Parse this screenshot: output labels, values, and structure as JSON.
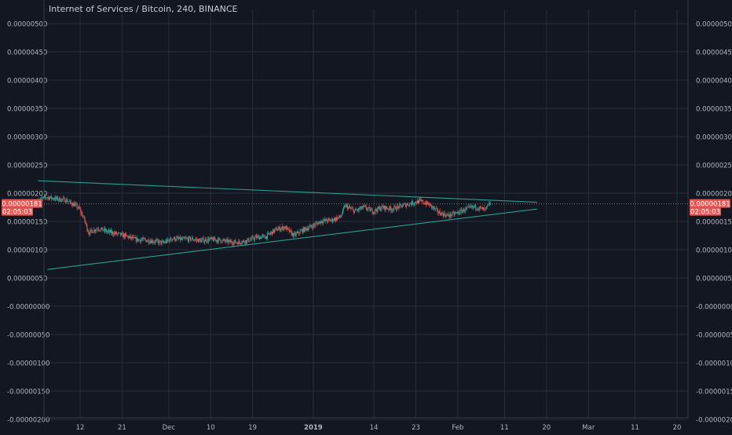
{
  "header": {
    "title": "Internet of Services / Bitcoin, 240, BINANCE"
  },
  "chart_data": {
    "type": "candlestick",
    "ylim": [
      -2e-07,
      5.1e-07
    ],
    "y_ticks": [
      "0.00000500",
      "0.00000450",
      "0.00000400",
      "0.00000350",
      "0.00000300",
      "0.00000250",
      "0.00000200",
      "0.00000150",
      "0.00000100",
      "0.00000050",
      "-0.00000000",
      "-0.00000050",
      "-0.00000100",
      "-0.00000150",
      "-0.00000200"
    ],
    "y_tick_values": [
      5e-07,
      4.5e-07,
      4e-07,
      3.5e-07,
      3e-07,
      2.5e-07,
      2e-07,
      1.5e-07,
      1e-07,
      5e-08,
      0,
      -5e-08,
      -1e-07,
      -1.5e-07,
      -2e-07
    ],
    "x_ticks": [
      "12",
      "21",
      "Dec",
      "10",
      "19",
      "2019",
      "14",
      "23",
      "Feb",
      "11",
      "20",
      "Mar",
      "11",
      "20"
    ],
    "x_tick_dates": [
      "2018-11-12",
      "2018-11-21",
      "2018-12-01",
      "2018-12-10",
      "2018-12-19",
      "2019-01-01",
      "2019-01-14",
      "2019-01-23",
      "2019-02-01",
      "2019-02-11",
      "2019-02-20",
      "2019-03-01",
      "2019-03-11",
      "2019-03-20"
    ],
    "x_range": [
      "2018-11-03",
      "2019-03-21"
    ],
    "price_series": [
      [
        "2018-11-03",
        1.87e-07
      ],
      [
        "2018-11-05",
        1.93e-07
      ],
      [
        "2018-11-07",
        1.9e-07
      ],
      [
        "2018-11-09",
        1.88e-07
      ],
      [
        "2018-11-11",
        1.79e-07
      ],
      [
        "2018-11-12",
        1.72e-07
      ],
      [
        "2018-11-13",
        1.55e-07
      ],
      [
        "2018-11-14",
        1.3e-07
      ],
      [
        "2018-11-16",
        1.38e-07
      ],
      [
        "2018-11-18",
        1.32e-07
      ],
      [
        "2018-11-20",
        1.28e-07
      ],
      [
        "2018-11-22",
        1.24e-07
      ],
      [
        "2018-11-24",
        1.18e-07
      ],
      [
        "2018-11-26",
        1.17e-07
      ],
      [
        "2018-11-28",
        1.15e-07
      ],
      [
        "2018-11-30",
        1.12e-07
      ],
      [
        "2018-12-02",
        1.2e-07
      ],
      [
        "2018-12-04",
        1.18e-07
      ],
      [
        "2018-12-06",
        1.19e-07
      ],
      [
        "2018-12-08",
        1.16e-07
      ],
      [
        "2018-12-10",
        1.18e-07
      ],
      [
        "2018-12-12",
        1.17e-07
      ],
      [
        "2018-12-14",
        1.14e-07
      ],
      [
        "2018-12-16",
        1.13e-07
      ],
      [
        "2018-12-18",
        1.16e-07
      ],
      [
        "2018-12-20",
        1.22e-07
      ],
      [
        "2018-12-22",
        1.23e-07
      ],
      [
        "2018-12-24",
        1.35e-07
      ],
      [
        "2018-12-26",
        1.4e-07
      ],
      [
        "2018-12-28",
        1.25e-07
      ],
      [
        "2018-12-30",
        1.35e-07
      ],
      [
        "2019-01-01",
        1.42e-07
      ],
      [
        "2019-01-03",
        1.51e-07
      ],
      [
        "2019-01-05",
        1.52e-07
      ],
      [
        "2019-01-07",
        1.58e-07
      ],
      [
        "2019-01-08",
        1.78e-07
      ],
      [
        "2019-01-10",
        1.68e-07
      ],
      [
        "2019-01-12",
        1.75e-07
      ],
      [
        "2019-01-14",
        1.68e-07
      ],
      [
        "2019-01-16",
        1.75e-07
      ],
      [
        "2019-01-18",
        1.72e-07
      ],
      [
        "2019-01-20",
        1.77e-07
      ],
      [
        "2019-01-22",
        1.82e-07
      ],
      [
        "2019-01-24",
        1.86e-07
      ],
      [
        "2019-01-26",
        1.8e-07
      ],
      [
        "2019-01-28",
        1.66e-07
      ],
      [
        "2019-01-30",
        1.6e-07
      ],
      [
        "2019-02-01",
        1.65e-07
      ],
      [
        "2019-02-03",
        1.72e-07
      ],
      [
        "2019-02-05",
        1.76e-07
      ],
      [
        "2019-02-07",
        1.7e-07
      ],
      [
        "2019-02-08",
        1.81e-07
      ]
    ],
    "trendlines": [
      {
        "from": [
          "2018-11-03",
          2.22e-07
        ],
        "to": [
          "2019-02-18",
          1.84e-07
        ]
      },
      {
        "from": [
          "2018-11-05",
          6.5e-08
        ],
        "to": [
          "2019-02-18",
          1.72e-07
        ]
      }
    ],
    "last_price_label": "0.00000181",
    "countdown_label": "02:05:03",
    "last_price_value": 1.81e-07,
    "colors": {
      "background": "#131722",
      "grid": "#2a2e39",
      "axis_text": "#b2b5be",
      "up": "#26a69a",
      "down": "#ef5350",
      "trendline": "#2a9d8f",
      "price_label_bg": "#ef5350",
      "price_line": "#ef5350"
    }
  }
}
